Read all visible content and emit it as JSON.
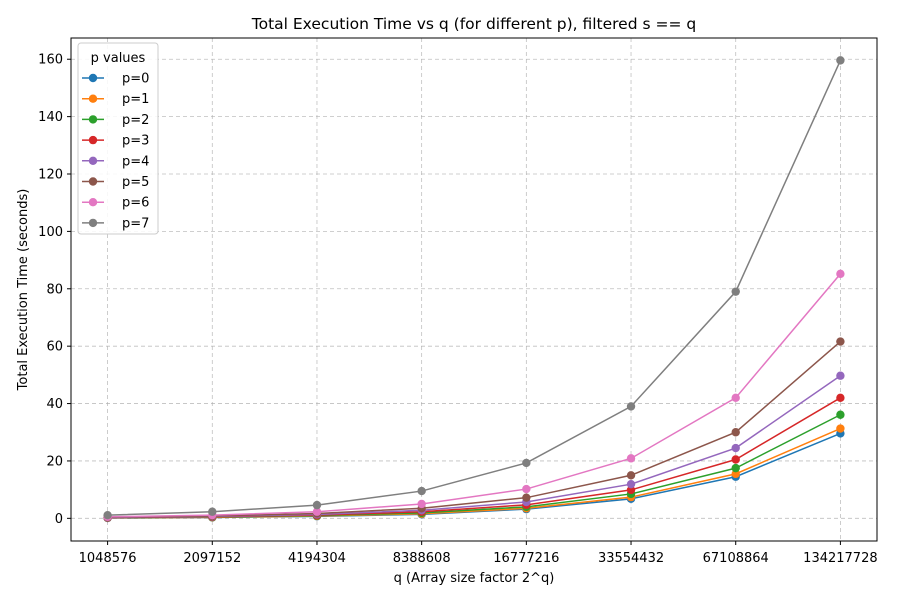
{
  "chart_data": {
    "type": "line",
    "title": "Total Execution Time vs q (for different p), filtered s == q",
    "xlabel": "q (Array size factor 2^q)",
    "ylabel": "Total Execution Time (seconds)",
    "categories": [
      "1048576",
      "2097152",
      "4194304",
      "8388608",
      "16777216",
      "33554432",
      "67108864",
      "134217728"
    ],
    "ylim": [
      -7.9,
      167.4
    ],
    "yticks": [
      0,
      20,
      40,
      60,
      80,
      100,
      120,
      140,
      160
    ],
    "grid": true,
    "legend": {
      "title": "p values",
      "placement": "top-left"
    },
    "series": [
      {
        "name": "p=0",
        "color": "#1f77b4",
        "values": [
          0.1,
          0.3,
          0.7,
          1.4,
          3.2,
          6.8,
          14.5,
          29.6
        ]
      },
      {
        "name": "p=1",
        "color": "#ff7f0e",
        "values": [
          0.15,
          0.35,
          0.8,
          1.6,
          3.5,
          7.4,
          15.5,
          31.3
        ]
      },
      {
        "name": "p=2",
        "color": "#2ca02c",
        "values": [
          0.2,
          0.45,
          0.95,
          1.9,
          4.0,
          8.5,
          17.5,
          36.1
        ]
      },
      {
        "name": "p=3",
        "color": "#d62728",
        "values": [
          0.25,
          0.55,
          1.1,
          2.3,
          4.7,
          9.9,
          20.5,
          42.0
        ]
      },
      {
        "name": "p=4",
        "color": "#9467bd",
        "values": [
          0.3,
          0.65,
          1.35,
          2.8,
          5.7,
          11.9,
          24.5,
          49.7
        ]
      },
      {
        "name": "p=5",
        "color": "#8c564b",
        "values": [
          0.4,
          0.8,
          1.7,
          3.5,
          7.2,
          15.0,
          30.0,
          61.6
        ]
      },
      {
        "name": "p=6",
        "color": "#e377c2",
        "values": [
          0.55,
          1.1,
          2.3,
          5.0,
          10.2,
          20.9,
          42.0,
          85.2
        ]
      },
      {
        "name": "p=7",
        "color": "#7f7f7f",
        "values": [
          1.1,
          2.3,
          4.6,
          9.5,
          19.3,
          39.0,
          79.0,
          159.6
        ]
      }
    ]
  }
}
